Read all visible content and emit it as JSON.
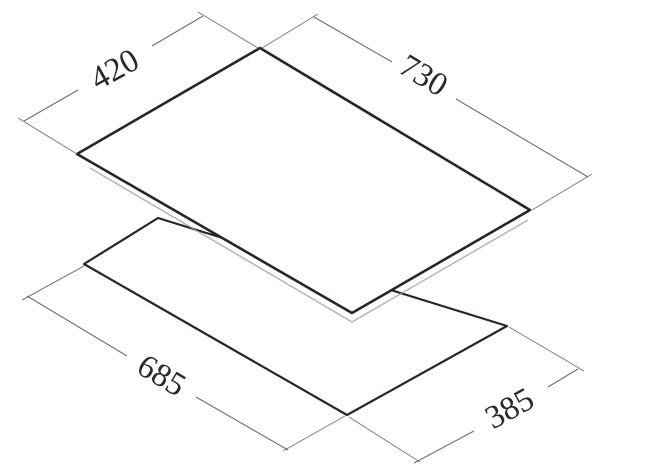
{
  "dimensions": {
    "top_width": "420",
    "top_length": "730",
    "cutout_length": "685",
    "cutout_width": "385"
  }
}
